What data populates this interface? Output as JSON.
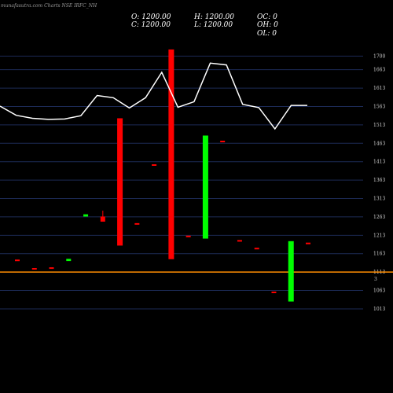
{
  "watermark": {
    "site": "munafasutra.com",
    "text": "Charts NSE IRFC_NH"
  },
  "ohlc": {
    "o_label": "O:",
    "o_value": "1200.00",
    "h_label": "H:",
    "h_value": "1200.00",
    "c_label": "C:",
    "c_value": "1200.00",
    "l_label": "L:",
    "l_value": "1200.00",
    "oc_label": "OC:",
    "oc_value": "0",
    "oh_label": "OH:",
    "oh_value": "0",
    "ol_label": "OL:",
    "ol_value": "0"
  },
  "colors": {
    "background": "#000000",
    "grid": "#1c2a55",
    "up": "#00ff00",
    "down": "#ff0000",
    "line": "#ffffff",
    "hline": "#ff8c00",
    "tick_text": "#cfcfcf"
  },
  "chart_data": {
    "type": "candlestick",
    "ylim": [
      1030,
      1720
    ],
    "yticks": [
      1700,
      1663,
      1613,
      1563,
      1513,
      1463,
      1413,
      1363,
      1313,
      1263,
      1213,
      1163,
      1113,
      1063,
      1013
    ],
    "hline": {
      "value": 1113,
      "label": "3"
    },
    "candles": [
      {
        "open": 1147,
        "high": 1147,
        "low": 1144,
        "close": 1144,
        "dir": "down"
      },
      {
        "open": 1124,
        "high": 1124,
        "low": 1121,
        "close": 1121,
        "dir": "down"
      },
      {
        "open": 1126,
        "high": 1126,
        "low": 1123,
        "close": 1123,
        "dir": "down"
      },
      {
        "open": 1143,
        "high": 1149,
        "low": 1143,
        "close": 1149,
        "dir": "up"
      },
      {
        "open": 1264,
        "high": 1270,
        "low": 1264,
        "close": 1270,
        "dir": "up"
      },
      {
        "open": 1264,
        "high": 1280,
        "low": 1250,
        "close": 1250,
        "dir": "down"
      },
      {
        "open": 1531,
        "high": 1531,
        "low": 1185,
        "close": 1185,
        "dir": "down"
      },
      {
        "open": 1246,
        "high": 1246,
        "low": 1243,
        "close": 1243,
        "dir": "down"
      },
      {
        "open": 1406,
        "high": 1406,
        "low": 1403,
        "close": 1403,
        "dir": "down"
      },
      {
        "open": 1718,
        "high": 1718,
        "low": 1148,
        "close": 1148,
        "dir": "down"
      },
      {
        "open": 1212,
        "high": 1212,
        "low": 1209,
        "close": 1209,
        "dir": "down"
      },
      {
        "open": 1204,
        "high": 1484,
        "low": 1204,
        "close": 1484,
        "dir": "up"
      },
      {
        "open": 1470,
        "high": 1470,
        "low": 1467,
        "close": 1467,
        "dir": "down"
      },
      {
        "open": 1200,
        "high": 1200,
        "low": 1197,
        "close": 1197,
        "dir": "down"
      },
      {
        "open": 1179,
        "high": 1179,
        "low": 1176,
        "close": 1176,
        "dir": "down"
      },
      {
        "open": 1060,
        "high": 1060,
        "low": 1057,
        "close": 1057,
        "dir": "down"
      },
      {
        "open": 1033,
        "high": 1197,
        "low": 1033,
        "close": 1197,
        "dir": "up"
      },
      {
        "open": 1193,
        "high": 1193,
        "low": 1190,
        "close": 1190,
        "dir": "down"
      }
    ],
    "line": [
      1564,
      1539,
      1531,
      1528,
      1529,
      1538,
      1593,
      1587,
      1559,
      1587,
      1656,
      1561,
      1576,
      1681,
      1676,
      1569,
      1560,
      1502,
      1566,
      1566
    ]
  }
}
